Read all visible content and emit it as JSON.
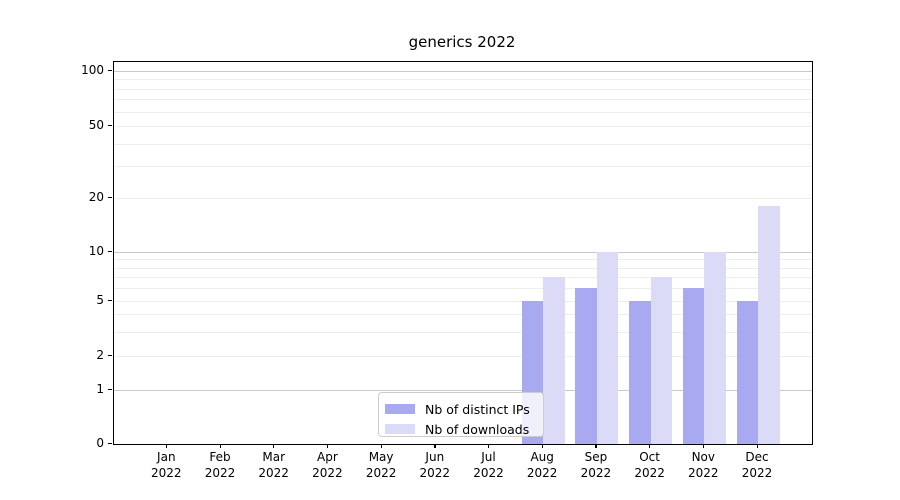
{
  "chart_data": {
    "type": "bar",
    "title": "generics 2022",
    "categories": [
      "Jan 2022",
      "Feb 2022",
      "Mar 2022",
      "Apr 2022",
      "May 2022",
      "Jun 2022",
      "Jul 2022",
      "Aug 2022",
      "Sep 2022",
      "Oct 2022",
      "Nov 2022",
      "Dec 2022"
    ],
    "series": [
      {
        "name": "Nb of distinct IPs",
        "color": "#a9a9f1",
        "values": [
          0,
          0,
          0,
          0,
          0,
          0,
          0,
          5,
          6,
          5,
          6,
          5
        ]
      },
      {
        "name": "Nb of downloads",
        "color": "#dbdbf7",
        "values": [
          0,
          0,
          0,
          0,
          0,
          0,
          0,
          7,
          10,
          7,
          10,
          18
        ]
      }
    ],
    "xlabel": "",
    "ylabel": "",
    "yscale": "symlog",
    "ylim": [
      0,
      110
    ],
    "yticks": [
      0,
      1,
      2,
      5,
      10,
      20,
      50,
      100
    ],
    "ytick_labels": [
      "0",
      "1",
      "2",
      "5",
      "10",
      "20",
      "50",
      "100"
    ],
    "minor_gridline_values": [
      2,
      3,
      4,
      5,
      6,
      7,
      8,
      9,
      20,
      30,
      40,
      50,
      60,
      70,
      80,
      90
    ],
    "major_gridline_values": [
      1,
      10,
      100
    ],
    "grid": true,
    "legend_position": "lower center",
    "colors": {
      "major_grid": "#c9c9c9",
      "minor_grid": "#ededed",
      "axis": "#000000",
      "text": "#000000",
      "background": "#ffffff"
    }
  }
}
